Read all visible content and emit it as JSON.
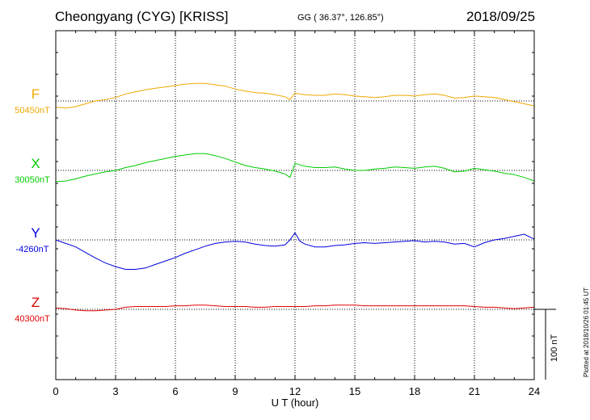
{
  "header": {
    "title": "Cheongyang (CYG)  [KRISS]",
    "coordinates": "GG ( 36.37°, 126.85°)",
    "date": "2018/09/25"
  },
  "plotted_note": "Plotted at 2018/10/26 01:45 UT",
  "scale_bar_label": "100 nT",
  "chart_data": {
    "type": "line",
    "title": "Cheongyang (CYG)  [KRISS]",
    "xlabel": "U T (hour)",
    "ylabel": "",
    "xlim": [
      0,
      24
    ],
    "x_ticks": [
      0,
      3,
      6,
      9,
      12,
      15,
      18,
      21,
      24
    ],
    "x_tick_labels": [
      "0",
      "3",
      "6",
      "9",
      "12",
      "15",
      "18",
      "21",
      "24"
    ],
    "grid": true,
    "scale_bar": {
      "label": "100 nT",
      "nT": 100
    },
    "series": [
      {
        "name": "F",
        "baseline_label": "50450nT",
        "baseline": 50450,
        "color": "#f0a800",
        "x": [
          0,
          0.5,
          1,
          1.5,
          2,
          2.5,
          3,
          3.5,
          4,
          4.5,
          5,
          5.5,
          6,
          6.5,
          7,
          7.5,
          8,
          8.5,
          9,
          9.5,
          10,
          10.5,
          11,
          11.5,
          11.75,
          12,
          12.5,
          13,
          13.5,
          14,
          14.5,
          15,
          15.5,
          16,
          16.5,
          17,
          17.5,
          18,
          18.5,
          19,
          19.5,
          20,
          20.5,
          21,
          21.5,
          22,
          22.5,
          23,
          23.5,
          24
        ],
        "values": [
          50441,
          50440,
          50442,
          50446,
          50450,
          50452,
          50455,
          50460,
          50463,
          50466,
          50468,
          50470,
          50472,
          50474,
          50475,
          50475,
          50473,
          50471,
          50467,
          50464,
          50462,
          50461,
          50459,
          50456,
          50452,
          50461,
          50459,
          50458,
          50458,
          50460,
          50459,
          50457,
          50456,
          50455,
          50456,
          50458,
          50458,
          50457,
          50459,
          50460,
          50458,
          50454,
          50455,
          50457,
          50456,
          50455,
          50452,
          50449,
          50446,
          50443
        ]
      },
      {
        "name": "X",
        "baseline_label": "30050nT",
        "baseline": 30050,
        "color": "#00cc00",
        "x": [
          0,
          0.5,
          1,
          1.5,
          2,
          2.5,
          3,
          3.5,
          4,
          4.5,
          5,
          5.5,
          6,
          6.5,
          7,
          7.5,
          8,
          8.5,
          9,
          9.5,
          10,
          10.5,
          11,
          11.5,
          11.75,
          12,
          12.5,
          13,
          13.5,
          14,
          14.5,
          15,
          15.5,
          16,
          16.5,
          17,
          17.5,
          18,
          18.5,
          19,
          19.5,
          20,
          20.5,
          21,
          21.5,
          22,
          22.5,
          23,
          23.5,
          24
        ],
        "values": [
          30034,
          30035,
          30038,
          30042,
          30045,
          30048,
          30050,
          30054,
          30057,
          30061,
          30064,
          30067,
          30070,
          30072,
          30074,
          30074,
          30071,
          30067,
          30062,
          30057,
          30054,
          30052,
          30049,
          30045,
          30040,
          30060,
          30056,
          30054,
          30054,
          30055,
          30052,
          30050,
          30050,
          30052,
          30053,
          30055,
          30054,
          30053,
          30055,
          30056,
          30053,
          30048,
          30049,
          30053,
          30051,
          30049,
          30046,
          30044,
          30040,
          30035
        ]
      },
      {
        "name": "Y",
        "baseline_label": "-4260nT",
        "baseline": -4260,
        "color": "#0000e0",
        "x": [
          0,
          0.5,
          1,
          1.5,
          2,
          2.5,
          3,
          3.5,
          4,
          4.5,
          5,
          5.5,
          6,
          6.5,
          7,
          7.5,
          8,
          8.5,
          9,
          9.5,
          10,
          10.5,
          11,
          11.5,
          11.75,
          12,
          12.25,
          12.5,
          13,
          13.5,
          14,
          14.5,
          15,
          15.5,
          16,
          16.5,
          17,
          17.5,
          18,
          18.5,
          19,
          19.5,
          20,
          20.5,
          21,
          21.5,
          22,
          22.5,
          23,
          23.5,
          24
        ],
        "values": [
          -4260,
          -4265,
          -4270,
          -4278,
          -4286,
          -4293,
          -4298,
          -4302,
          -4302,
          -4300,
          -4295,
          -4290,
          -4285,
          -4279,
          -4274,
          -4269,
          -4265,
          -4263,
          -4262,
          -4263,
          -4266,
          -4268,
          -4269,
          -4267,
          -4260,
          -4250,
          -4262,
          -4266,
          -4270,
          -4270,
          -4268,
          -4267,
          -4265,
          -4264,
          -4265,
          -4264,
          -4263,
          -4262,
          -4261,
          -4263,
          -4262,
          -4263,
          -4266,
          -4265,
          -4270,
          -4264,
          -4260,
          -4258,
          -4255,
          -4252,
          -4259
        ]
      },
      {
        "name": "Z",
        "baseline_label": "40300nT",
        "baseline": 40300,
        "color": "#e00000",
        "x": [
          0,
          0.5,
          1,
          1.5,
          2,
          2.5,
          3,
          3.5,
          4,
          4.5,
          5,
          5.5,
          6,
          6.5,
          7,
          7.5,
          8,
          8.5,
          9,
          9.5,
          10,
          10.5,
          11,
          11.5,
          12,
          12.5,
          13,
          13.5,
          14,
          14.5,
          15,
          15.5,
          16,
          16.5,
          17,
          17.5,
          18,
          18.5,
          19,
          19.5,
          20,
          20.5,
          21,
          21.5,
          22,
          22.5,
          23,
          23.5,
          24
        ],
        "values": [
          40302,
          40301,
          40299,
          40298,
          40298,
          40299,
          40300,
          40303,
          40304,
          40304,
          40304,
          40304,
          40305,
          40305,
          40306,
          40306,
          40305,
          40304,
          40304,
          40304,
          40303,
          40303,
          40304,
          40304,
          40304,
          40304,
          40305,
          40305,
          40306,
          40306,
          40306,
          40305,
          40305,
          40305,
          40305,
          40305,
          40305,
          40305,
          40305,
          40305,
          40305,
          40305,
          40304,
          40303,
          40303,
          40302,
          40301,
          40302,
          40303
        ]
      }
    ]
  }
}
